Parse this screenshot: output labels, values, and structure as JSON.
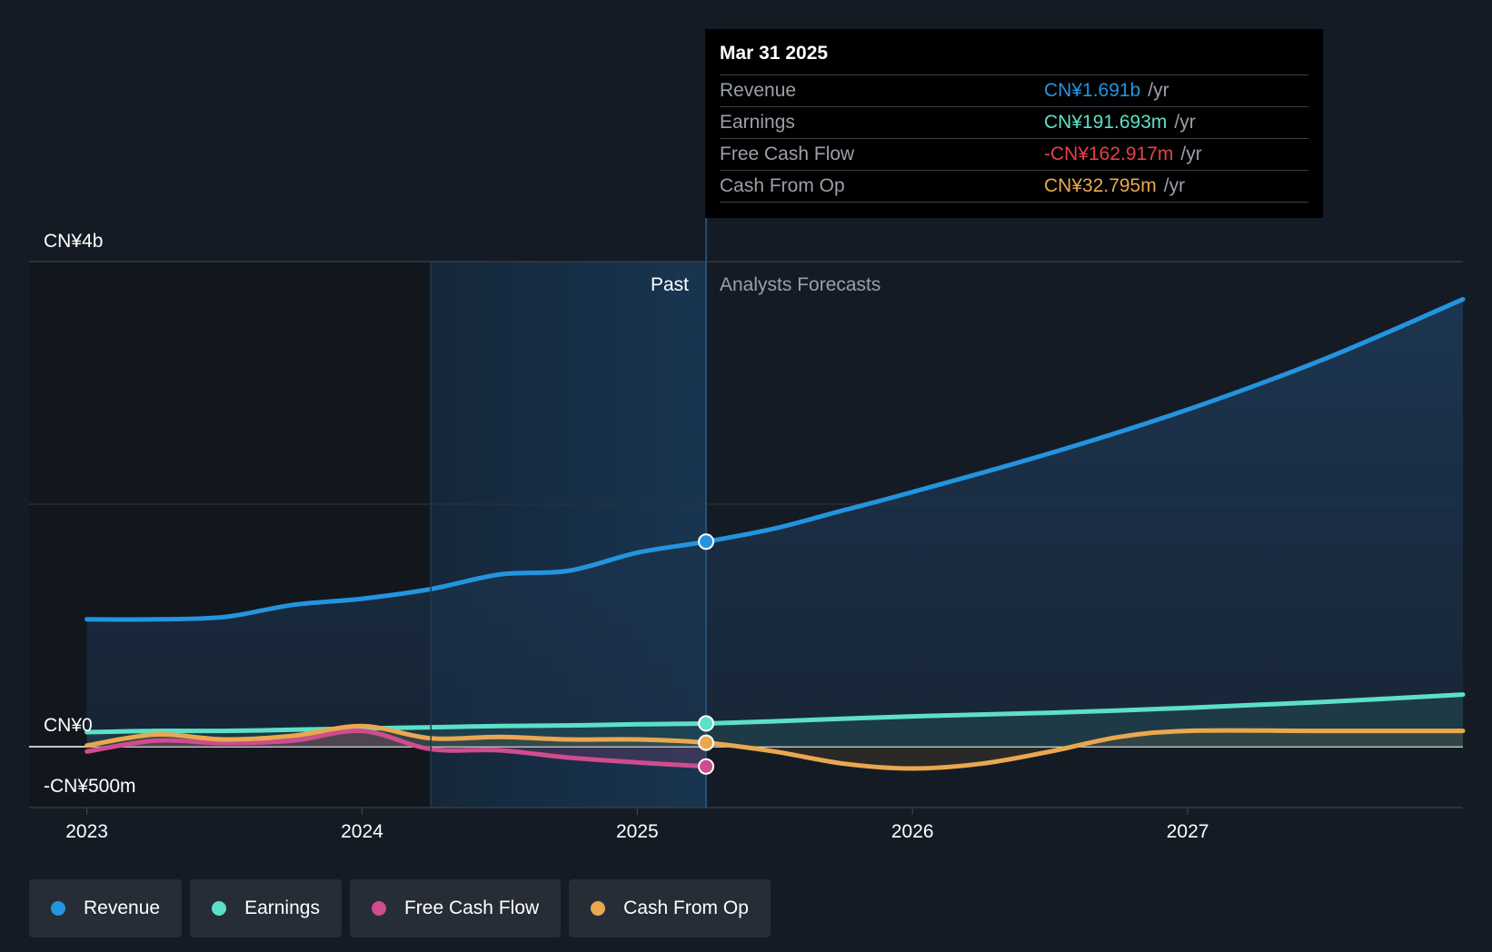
{
  "chart_data": {
    "type": "line",
    "currency_note": "CN¥",
    "y_axis": {
      "top_label": "CN¥4b",
      "zero_label": "CN¥0",
      "bottom_label": "-CN¥500m",
      "ylim": [
        -0.5,
        4.0
      ],
      "units": "CN¥ billions"
    },
    "x_axis": {
      "ticks": [
        "2023",
        "2024",
        "2025",
        "2026",
        "2027"
      ],
      "tick_values": [
        2023,
        2024,
        2025,
        2026,
        2027
      ],
      "xlim": [
        2022.79,
        2028.0
      ]
    },
    "past_label": "Past",
    "forecast_label": "Analysts Forecasts",
    "past_start": 2024.25,
    "divider_x": 2025.25,
    "series": [
      {
        "name": "Revenue",
        "color": "#2394df",
        "x": [
          2023.0,
          2023.25,
          2023.5,
          2023.75,
          2024.0,
          2024.25,
          2024.5,
          2024.75,
          2025.0,
          2025.25,
          2025.5,
          2025.75,
          2026.0,
          2026.5,
          2027.0,
          2027.5,
          2028.0
        ],
        "values": [
          1.05,
          1.05,
          1.07,
          1.17,
          1.22,
          1.3,
          1.42,
          1.45,
          1.6,
          1.691,
          1.8,
          1.95,
          2.1,
          2.42,
          2.78,
          3.2,
          3.69
        ]
      },
      {
        "name": "Earnings",
        "color": "#5ce0c8",
        "x": [
          2023.0,
          2023.25,
          2023.5,
          2023.75,
          2024.0,
          2024.25,
          2024.5,
          2024.75,
          2025.0,
          2025.25,
          2025.5,
          2026.0,
          2026.5,
          2027.0,
          2027.5,
          2028.0
        ],
        "values": [
          0.12,
          0.13,
          0.13,
          0.14,
          0.15,
          0.16,
          0.17,
          0.175,
          0.185,
          0.191693,
          0.21,
          0.25,
          0.28,
          0.32,
          0.37,
          0.43
        ]
      },
      {
        "name": "Free Cash Flow",
        "color": "#d04c8e",
        "x": [
          2023.0,
          2023.25,
          2023.5,
          2023.75,
          2024.0,
          2024.25,
          2024.5,
          2024.75,
          2025.0,
          2025.25
        ],
        "values": [
          -0.04,
          0.05,
          0.03,
          0.05,
          0.13,
          -0.02,
          -0.03,
          -0.09,
          -0.13,
          -0.162917
        ]
      },
      {
        "name": "Cash From Op",
        "color": "#e9a84f",
        "x": [
          2023.0,
          2023.25,
          2023.5,
          2023.75,
          2024.0,
          2024.25,
          2024.5,
          2024.75,
          2025.0,
          2025.25,
          2025.5,
          2025.75,
          2026.0,
          2026.25,
          2026.5,
          2026.75,
          2027.0,
          2027.5,
          2028.0
        ],
        "values": [
          0.01,
          0.1,
          0.06,
          0.09,
          0.17,
          0.07,
          0.08,
          0.06,
          0.06,
          0.032795,
          -0.04,
          -0.14,
          -0.18,
          -0.14,
          -0.04,
          0.08,
          0.13,
          0.13,
          0.13
        ]
      }
    ]
  },
  "tooltip": {
    "date": "Mar 31 2025",
    "rows": [
      {
        "name": "Revenue",
        "value": "CN¥1.691b",
        "unit": "/yr",
        "color": "#2394df"
      },
      {
        "name": "Earnings",
        "value": "CN¥191.693m",
        "unit": "/yr",
        "color": "#5ce0c8"
      },
      {
        "name": "Free Cash Flow",
        "value": "-CN¥162.917m",
        "unit": "/yr",
        "color": "#e8404a"
      },
      {
        "name": "Cash From Op",
        "value": "CN¥32.795m",
        "unit": "/yr",
        "color": "#e9a84f"
      }
    ]
  },
  "legend": [
    {
      "label": "Revenue",
      "color": "#2394df"
    },
    {
      "label": "Earnings",
      "color": "#5ce0c8"
    },
    {
      "label": "Free Cash Flow",
      "color": "#d04c8e"
    },
    {
      "label": "Cash From Op",
      "color": "#e9a84f"
    }
  ]
}
